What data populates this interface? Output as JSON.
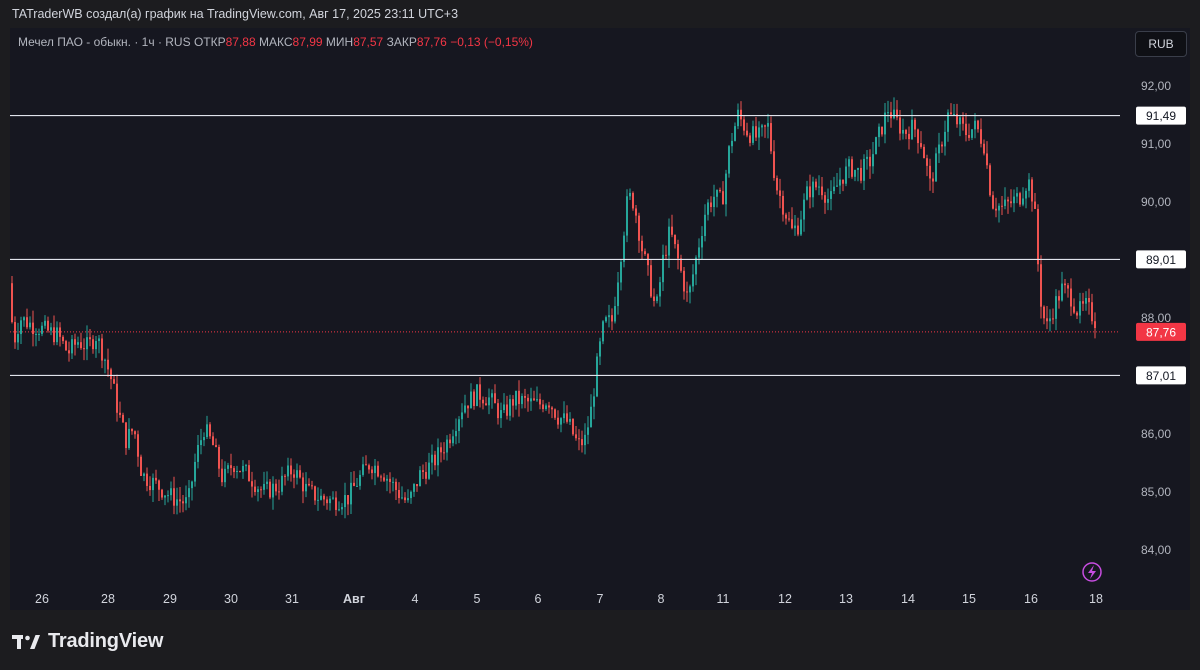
{
  "header": {
    "caption": "TATraderWB создал(а) график на TradingView.com, Авг 17, 2025 23:11 UTC+3"
  },
  "legend": {
    "symbol": "Мечел ПАО - обыкн. · 1ч · RUS",
    "open_label": "ОТКР",
    "open_value": "87,88",
    "high_label": "МАКС",
    "high_value": "87,99",
    "low_label": "МИН",
    "low_value": "87,57",
    "close_label": "ЗАКР",
    "close_value": "87,76",
    "change": "−0,13 (−0,15%)"
  },
  "currency_button": "RUB",
  "brand": {
    "name": "TradingView"
  },
  "colors": {
    "up": "#26a69a",
    "down": "#ef5350",
    "background": "#161720",
    "current_price_tag": "#f23645",
    "level_line": "#e0e3eb"
  },
  "chart_data": {
    "type": "candlestick",
    "symbol": "Мечел ПАО - обыкн.",
    "interval": "1ч",
    "currency": "RUB",
    "ylim": [
      83.5,
      92.35
    ],
    "y_ticks": [
      "84,00",
      "85,00",
      "86,00",
      "87,00",
      "88,00",
      "89,00",
      "90,00",
      "91,00",
      "92,00"
    ],
    "y_tick_values": [
      84,
      85,
      86,
      87,
      88,
      89,
      90,
      91,
      92
    ],
    "x_ticks": [
      "26",
      "28",
      "29",
      "30",
      "31",
      "Авг",
      "4",
      "5",
      "6",
      "7",
      "8",
      "11",
      "12",
      "13",
      "14",
      "15",
      "16",
      "18"
    ],
    "horizontal_levels": [
      {
        "value": 91.49,
        "label": "91,49"
      },
      {
        "value": 89.01,
        "label": "89,01"
      },
      {
        "value": 87.01,
        "label": "87,01"
      }
    ],
    "last_price": {
      "value": 87.76,
      "label": "87,76"
    },
    "anchors": [
      [
        0,
        88.6
      ],
      [
        6,
        87.6
      ],
      [
        12,
        88.0
      ],
      [
        22,
        87.9
      ],
      [
        35,
        87.8
      ],
      [
        50,
        87.7
      ],
      [
        60,
        87.4
      ],
      [
        70,
        87.6
      ],
      [
        80,
        87.5
      ],
      [
        88,
        87.7
      ],
      [
        97,
        87.3
      ],
      [
        104,
        86.9
      ],
      [
        110,
        86.4
      ],
      [
        118,
        85.9
      ],
      [
        126,
        86.1
      ],
      [
        134,
        85.3
      ],
      [
        150,
        85.1
      ],
      [
        165,
        84.9
      ],
      [
        180,
        84.8
      ],
      [
        188,
        85.6
      ],
      [
        196,
        86.1
      ],
      [
        205,
        85.8
      ],
      [
        215,
        85.2
      ],
      [
        225,
        85.5
      ],
      [
        240,
        85.3
      ],
      [
        255,
        85.0
      ],
      [
        270,
        85.1
      ],
      [
        285,
        85.4
      ],
      [
        300,
        85.0
      ],
      [
        312,
        84.9
      ],
      [
        325,
        84.85
      ],
      [
        340,
        84.9
      ],
      [
        350,
        85.2
      ],
      [
        362,
        85.5
      ],
      [
        375,
        85.35
      ],
      [
        390,
        85.0
      ],
      [
        400,
        84.8
      ],
      [
        412,
        85.3
      ],
      [
        425,
        85.5
      ],
      [
        440,
        85.9
      ],
      [
        455,
        86.5
      ],
      [
        470,
        86.7
      ],
      [
        482,
        86.6
      ],
      [
        494,
        86.3
      ],
      [
        506,
        86.6
      ],
      [
        518,
        86.55
      ],
      [
        530,
        86.5
      ],
      [
        540,
        86.6
      ],
      [
        550,
        86.3
      ],
      [
        560,
        86.2
      ],
      [
        570,
        85.8
      ],
      [
        577,
        85.9
      ],
      [
        583,
        86.4
      ],
      [
        590,
        87.3
      ],
      [
        596,
        87.9
      ],
      [
        604,
        87.95
      ],
      [
        612,
        89.0
      ],
      [
        620,
        90.1
      ],
      [
        626,
        90.0
      ],
      [
        634,
        89.2
      ],
      [
        642,
        88.6
      ],
      [
        648,
        88.1
      ],
      [
        655,
        89.0
      ],
      [
        662,
        89.5
      ],
      [
        670,
        89.0
      ],
      [
        680,
        88.3
      ],
      [
        690,
        89.2
      ],
      [
        698,
        89.9
      ],
      [
        706,
        90.1
      ],
      [
        714,
        90.0
      ],
      [
        722,
        91.0
      ],
      [
        730,
        91.5
      ],
      [
        740,
        91.2
      ],
      [
        750,
        91.1
      ],
      [
        760,
        91.3
      ],
      [
        768,
        90.3
      ],
      [
        776,
        89.9
      ],
      [
        784,
        89.5
      ],
      [
        790,
        89.6
      ],
      [
        800,
        90.2
      ],
      [
        812,
        90.3
      ],
      [
        822,
        90.0
      ],
      [
        832,
        90.4
      ],
      [
        842,
        90.6
      ],
      [
        852,
        90.5
      ],
      [
        862,
        90.7
      ],
      [
        872,
        91.2
      ],
      [
        880,
        91.6
      ],
      [
        888,
        91.4
      ],
      [
        896,
        91.2
      ],
      [
        906,
        91.3
      ],
      [
        914,
        91.0
      ],
      [
        922,
        90.3
      ],
      [
        930,
        90.8
      ],
      [
        940,
        91.5
      ],
      [
        948,
        91.4
      ],
      [
        958,
        91.2
      ],
      [
        968,
        91.3
      ],
      [
        976,
        91.0
      ],
      [
        984,
        90.0
      ],
      [
        994,
        89.9
      ],
      [
        1004,
        90.0
      ],
      [
        1012,
        90.1
      ],
      [
        1020,
        90.4
      ],
      [
        1026,
        90.0
      ],
      [
        1032,
        88.4
      ],
      [
        1038,
        87.8
      ],
      [
        1046,
        88.2
      ],
      [
        1054,
        88.5
      ],
      [
        1062,
        88.4
      ],
      [
        1070,
        88.1
      ],
      [
        1078,
        88.2
      ],
      [
        1086,
        88.0
      ],
      [
        1092,
        87.76
      ]
    ]
  }
}
